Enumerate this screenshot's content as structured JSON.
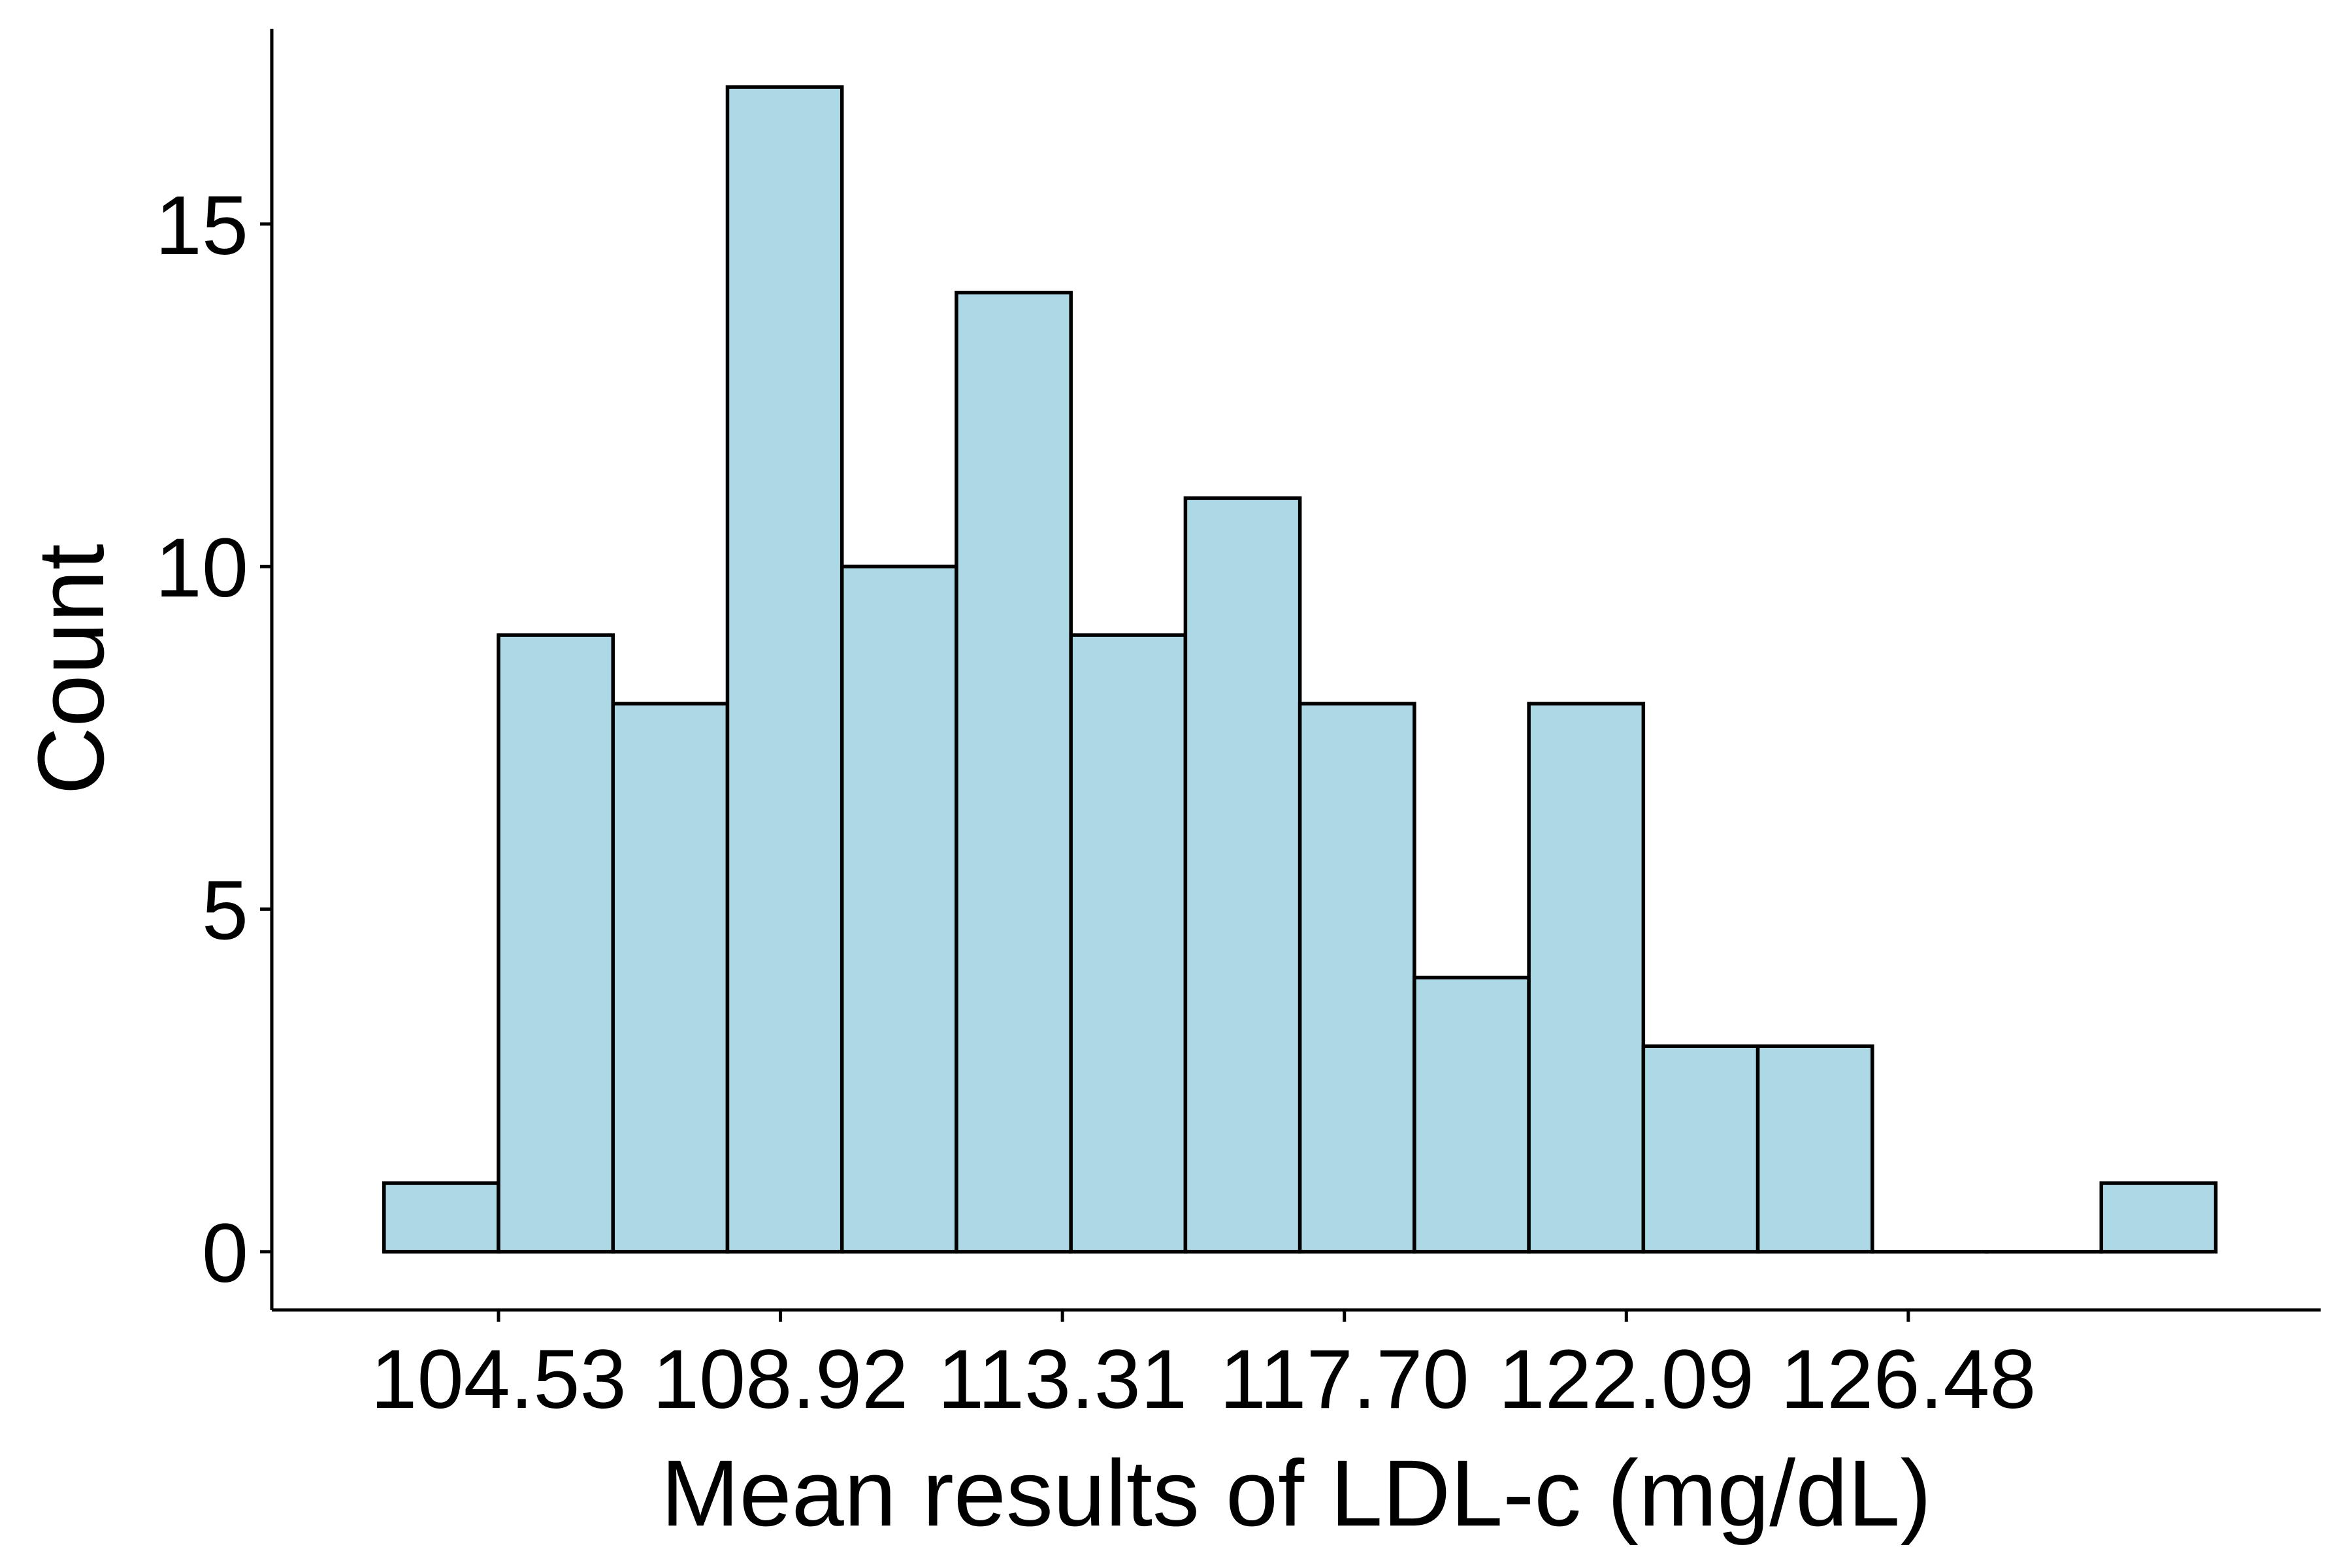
{
  "chart_data": {
    "type": "bar",
    "subtype": "histogram",
    "xlabel": "Mean results of LDL-c (mg/dL)",
    "ylabel": "Count",
    "bin_width": 1.7825,
    "bins": [
      {
        "x0": 102.7475,
        "x1": 104.53,
        "count": 1
      },
      {
        "x0": 104.53,
        "x1": 106.3125,
        "count": 9
      },
      {
        "x0": 106.3125,
        "x1": 108.095,
        "count": 8
      },
      {
        "x0": 108.095,
        "x1": 109.8775,
        "count": 17
      },
      {
        "x0": 109.8775,
        "x1": 111.66,
        "count": 10
      },
      {
        "x0": 111.66,
        "x1": 113.4425,
        "count": 14
      },
      {
        "x0": 113.4425,
        "x1": 115.225,
        "count": 9
      },
      {
        "x0": 115.225,
        "x1": 117.0075,
        "count": 11
      },
      {
        "x0": 117.0075,
        "x1": 118.79,
        "count": 8
      },
      {
        "x0": 118.79,
        "x1": 120.5725,
        "count": 4
      },
      {
        "x0": 120.5725,
        "x1": 122.355,
        "count": 8
      },
      {
        "x0": 122.355,
        "x1": 124.1375,
        "count": 3
      },
      {
        "x0": 124.1375,
        "x1": 125.92,
        "count": 3
      },
      {
        "x0": 125.92,
        "x1": 127.7025,
        "count": 0
      },
      {
        "x0": 127.7025,
        "x1": 129.485,
        "count": 0
      },
      {
        "x0": 129.485,
        "x1": 131.2675,
        "count": 1
      }
    ],
    "x_ticks": [
      {
        "value": 104.53,
        "label": "104.53"
      },
      {
        "value": 108.92,
        "label": "108.92"
      },
      {
        "value": 113.31,
        "label": "113.31"
      },
      {
        "value": 117.7,
        "label": "117.70"
      },
      {
        "value": 122.09,
        "label": "122.09"
      },
      {
        "value": 126.48,
        "label": "126.48"
      }
    ],
    "y_ticks": [
      {
        "value": 0,
        "label": "0"
      },
      {
        "value": 5,
        "label": "5"
      },
      {
        "value": 10,
        "label": "10"
      },
      {
        "value": 15,
        "label": "15"
      }
    ],
    "xlim": [
      101.0,
      132.9
    ],
    "ylim": [
      -0.85,
      17.85
    ],
    "grid": false,
    "legend": "none",
    "bar_fill": "#add8e6",
    "bar_stroke": "#000000",
    "axis_color": "#000000"
  }
}
